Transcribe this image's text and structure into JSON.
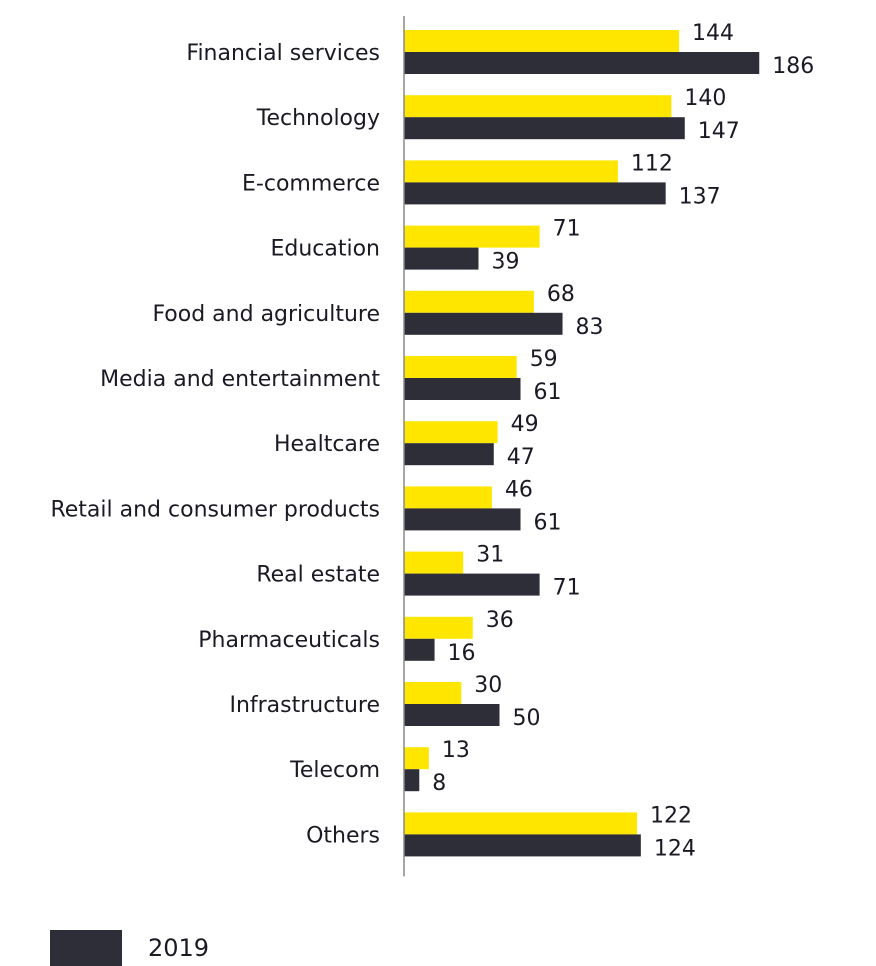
{
  "chart_data": {
    "type": "bar",
    "orientation": "horizontal",
    "categories": [
      "Financial services",
      "Technology",
      "E-commerce",
      "Education",
      "Food and agriculture",
      "Media and entertainment",
      "Healtcare",
      "Retail and consumer products",
      "Real estate",
      "Pharmaceuticals",
      "Infrastructure",
      "Telecom",
      "Others"
    ],
    "series": [
      {
        "values": [
          144,
          140,
          112,
          71,
          68,
          59,
          49,
          46,
          31,
          36,
          30,
          13,
          122
        ],
        "color": "#ffe600"
      },
      {
        "name": "2019",
        "values": [
          186,
          147,
          137,
          39,
          83,
          61,
          47,
          61,
          71,
          16,
          50,
          8,
          124
        ],
        "color": "#2e2e38"
      }
    ],
    "xlim": [
      0,
      200
    ],
    "grid": false,
    "legend": "bottom-left"
  }
}
